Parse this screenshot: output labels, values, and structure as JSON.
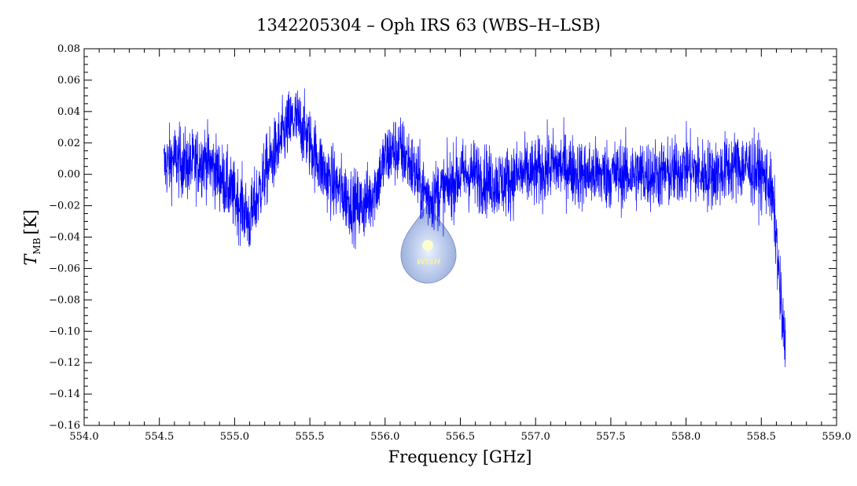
{
  "chart_data": {
    "type": "line",
    "title": "1342205304 – Oph IRS 63 (WBS–H–LSB)",
    "xlabel": "Frequency [GHz]",
    "ylabel_main": "T",
    "ylabel_sub": "MB",
    "ylabel_unit": "[K]",
    "xlim": [
      554.0,
      559.0
    ],
    "ylim": [
      -0.16,
      0.08
    ],
    "xticks": [
      "554.0",
      "554.5",
      "555.0",
      "555.5",
      "556.0",
      "556.5",
      "557.0",
      "557.5",
      "558.0",
      "558.5",
      "559.0"
    ],
    "yticks": [
      "0.08",
      "0.06",
      "0.04",
      "0.02",
      "0.00",
      "−0.02",
      "−0.04",
      "−0.06",
      "−0.08",
      "−0.10",
      "−0.12",
      "−0.14",
      "−0.16"
    ],
    "line_color": "#0000ff",
    "logo_text": "WISH",
    "series": [
      {
        "x": [
          554.53,
          554.6,
          554.7,
          554.8,
          554.9,
          555.0,
          555.05,
          555.1,
          555.15,
          555.2,
          555.3,
          555.35,
          555.4,
          555.45,
          555.5,
          555.55,
          555.6,
          555.65,
          555.7,
          555.75,
          555.8,
          555.85,
          555.9,
          555.95,
          556.0,
          556.05,
          556.1,
          556.15,
          556.2,
          556.25,
          556.3,
          556.35,
          556.4,
          556.45,
          556.5,
          556.6,
          556.7,
          556.8,
          556.9,
          557.0,
          557.1,
          557.2,
          557.3,
          557.4,
          557.5,
          557.6,
          557.7,
          557.8,
          557.9,
          558.0,
          558.1,
          558.2,
          558.3,
          558.4,
          558.5,
          558.55,
          558.58,
          558.6,
          558.62,
          558.64,
          558.66
        ],
        "y": [
          0.005,
          0.01,
          0.005,
          0.01,
          0.0,
          -0.015,
          -0.02,
          -0.03,
          -0.015,
          0.0,
          0.02,
          0.03,
          0.035,
          0.03,
          0.02,
          0.01,
          0.0,
          -0.005,
          -0.01,
          -0.015,
          -0.02,
          -0.02,
          -0.015,
          -0.005,
          0.01,
          0.015,
          0.015,
          0.01,
          0.0,
          -0.01,
          -0.015,
          -0.012,
          -0.01,
          -0.005,
          0.0,
          0.0,
          -0.005,
          -0.005,
          0.0,
          0.0,
          0.005,
          0.005,
          0.0,
          0.0,
          0.0,
          0.0,
          0.0,
          0.0,
          0.0,
          0.005,
          0.0,
          0.0,
          0.005,
          0.005,
          0.0,
          -0.005,
          -0.02,
          -0.04,
          -0.07,
          -0.095,
          -0.11
        ]
      }
    ]
  }
}
